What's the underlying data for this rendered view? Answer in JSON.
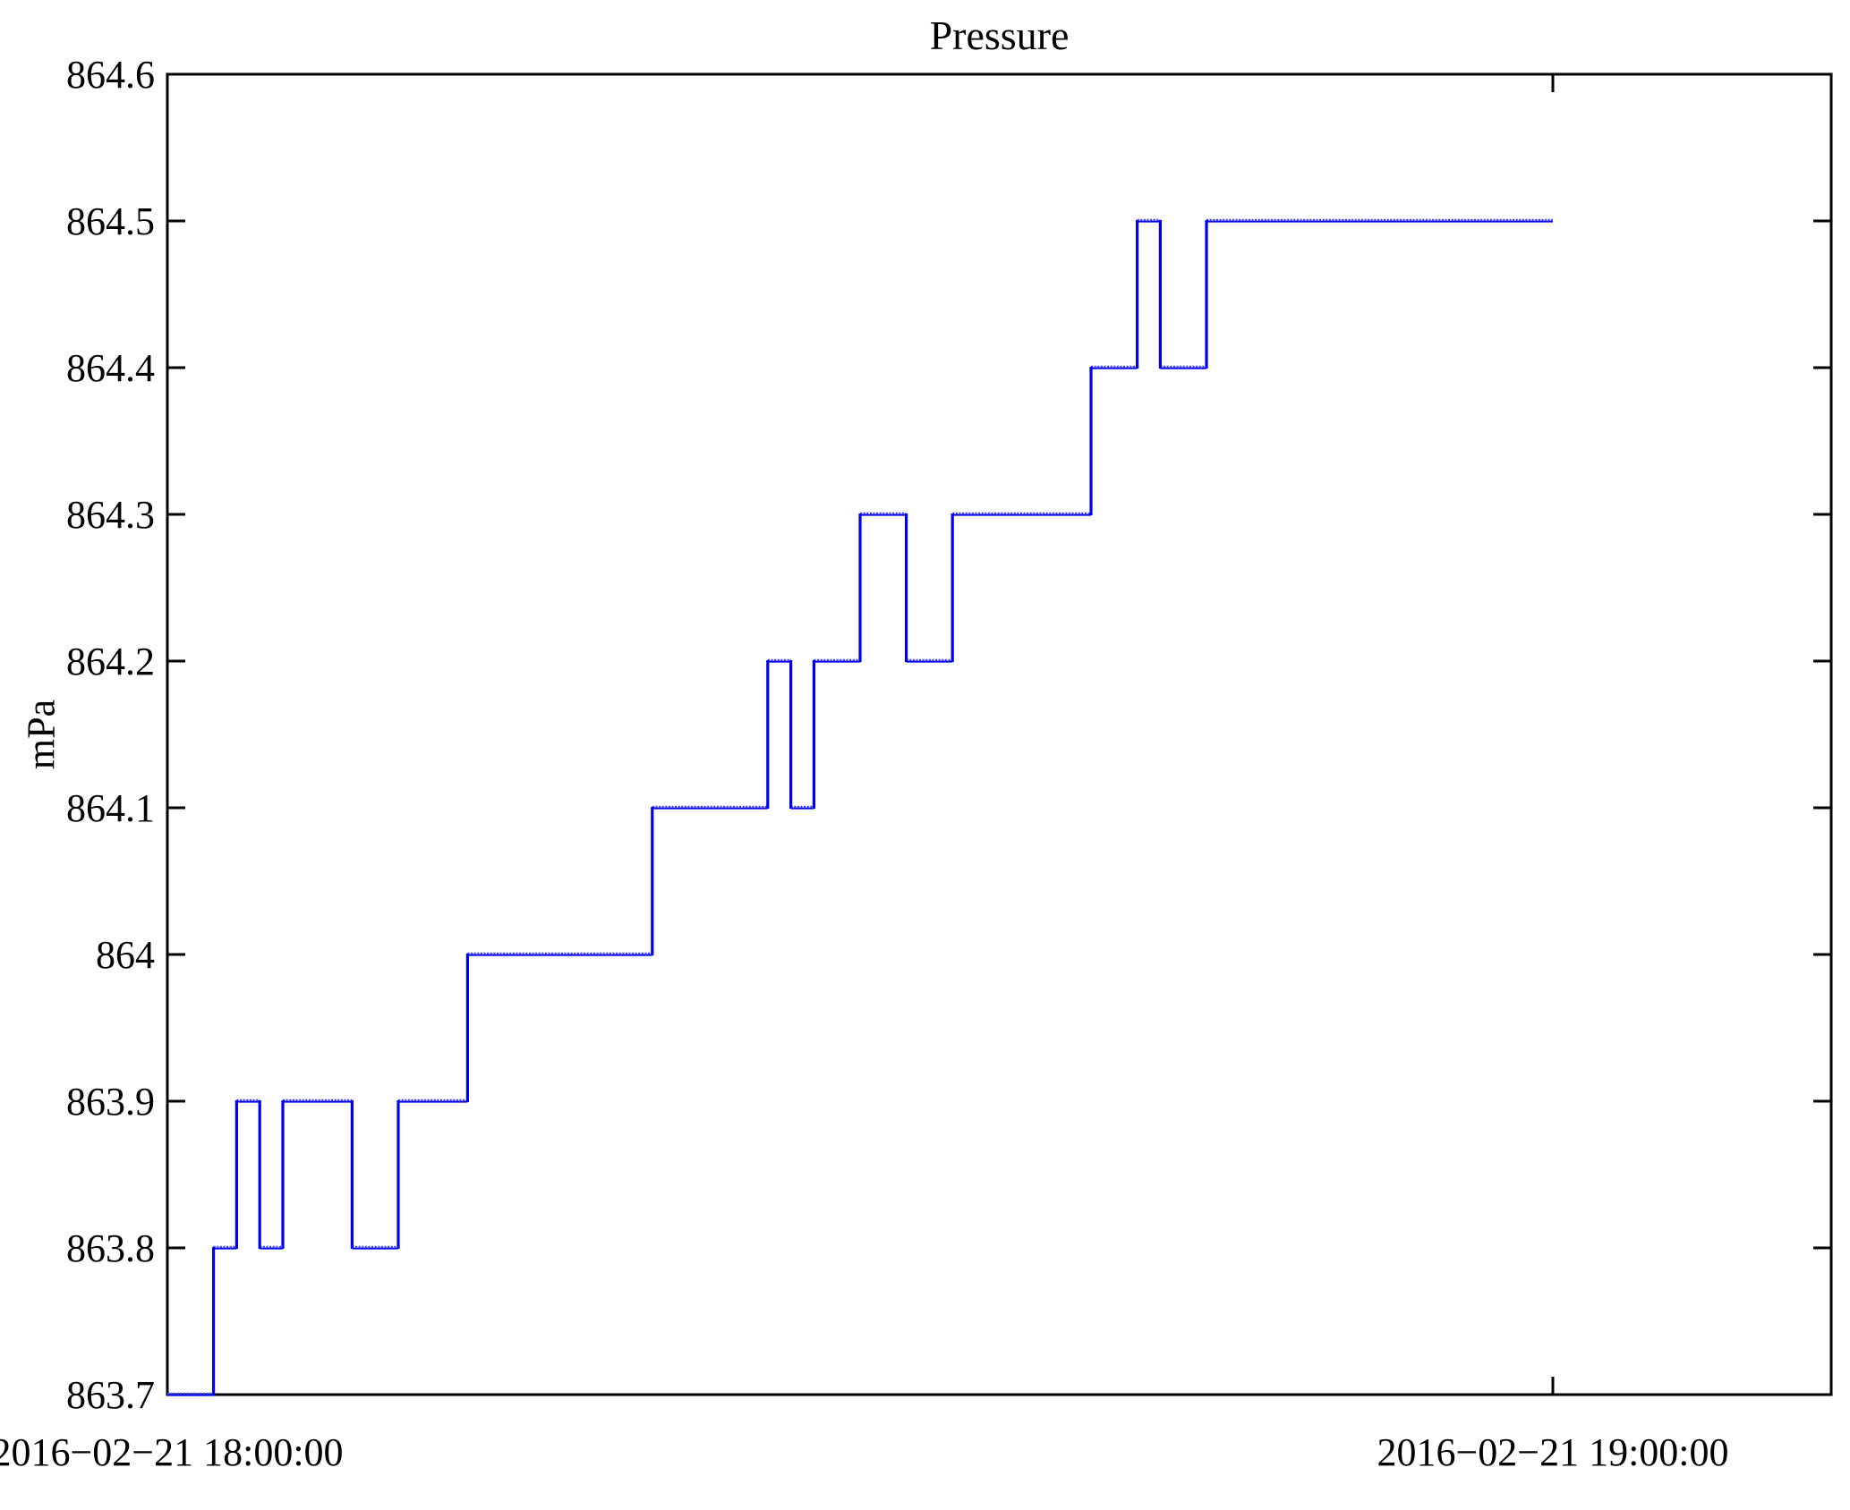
{
  "page": {
    "background": "#ffffff"
  },
  "chart_data": {
    "type": "line",
    "style": "steps",
    "title": "Pressure",
    "ylabel": "mPa",
    "line_color": "#0000ee",
    "line_color_light": "#4545ff",
    "axis_color": "#000000",
    "grid": false,
    "legend": "none",
    "ylim": [
      863.7,
      864.6
    ],
    "y_ticks": [
      863.7,
      863.8,
      863.9,
      864.0,
      864.1,
      864.2,
      864.3,
      864.4,
      864.5,
      864.6
    ],
    "y_tick_labels": [
      "863.7",
      "863.8",
      "863.9",
      "864",
      "864.1",
      "864.2",
      "864.3",
      "864.4",
      "864.5",
      "864.6"
    ],
    "x_ticks": [
      {
        "minutes": 0,
        "label": "2016−02−21 18:00:00"
      },
      {
        "minutes": 60,
        "label": "2016−02−21 19:00:00"
      }
    ],
    "x_range_minutes": [
      0,
      72
    ],
    "x_start_time": "2016-02-21 18:00:00",
    "x_end_time": "2016-02-21 19:00:00",
    "series": [
      {
        "name": "Pressure",
        "unit": "mPa",
        "end_minute": 60,
        "end_value": 864.5,
        "change_points": [
          {
            "minute": 0,
            "value": 863.7
          },
          {
            "minute": 2,
            "value": 863.8
          },
          {
            "minute": 3,
            "value": 863.9
          },
          {
            "minute": 4,
            "value": 863.8
          },
          {
            "minute": 5,
            "value": 863.9
          },
          {
            "minute": 8,
            "value": 863.8
          },
          {
            "minute": 10,
            "value": 863.9
          },
          {
            "minute": 13,
            "value": 864.0
          },
          {
            "minute": 21,
            "value": 864.1
          },
          {
            "minute": 26,
            "value": 864.2
          },
          {
            "minute": 27,
            "value": 864.1
          },
          {
            "minute": 28,
            "value": 864.2
          },
          {
            "minute": 30,
            "value": 864.3
          },
          {
            "minute": 32,
            "value": 864.2
          },
          {
            "minute": 34,
            "value": 864.3
          },
          {
            "minute": 40,
            "value": 864.4
          },
          {
            "minute": 42,
            "value": 864.5
          },
          {
            "minute": 43,
            "value": 864.4
          },
          {
            "minute": 45,
            "value": 864.5
          }
        ]
      }
    ]
  }
}
